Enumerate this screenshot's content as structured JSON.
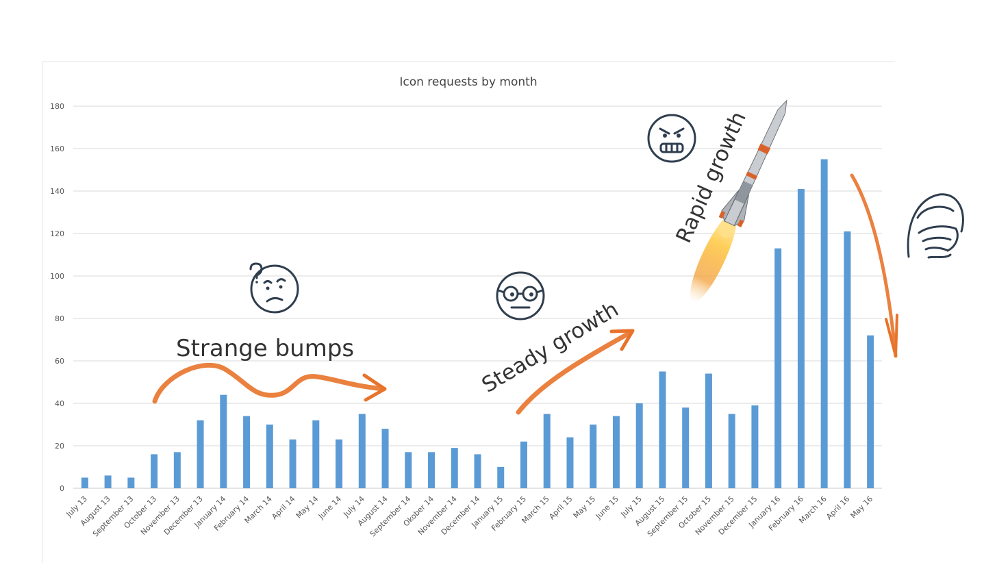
{
  "chart_data": {
    "type": "bar",
    "title": "Icon requests by month",
    "xlabel": "",
    "ylabel": "",
    "ylim": [
      0,
      180
    ],
    "yticks": [
      0,
      20,
      40,
      60,
      80,
      100,
      120,
      140,
      160,
      180
    ],
    "grid": true,
    "legend": "none",
    "bar_color": "#5b9bd5",
    "categories": [
      "July 13",
      "August 13",
      "September 13",
      "October 13",
      "November 13",
      "December 13",
      "January 14",
      "February 14",
      "March 14",
      "April 14",
      "May 14",
      "June 14",
      "July 14",
      "August 14",
      "September 14",
      "Okober 14",
      "November 14",
      "December 14",
      "January 15",
      "February 15",
      "March 15",
      "April 15",
      "May 15",
      "June 15",
      "July 15",
      "August 15",
      "September 15",
      "October 15",
      "November 15",
      "December 15",
      "January 16",
      "February 16",
      "March 16",
      "April 16",
      "May 16"
    ],
    "values": [
      5,
      6,
      5,
      16,
      17,
      32,
      44,
      34,
      30,
      23,
      32,
      23,
      35,
      28,
      17,
      17,
      19,
      16,
      10,
      22,
      35,
      24,
      30,
      34,
      40,
      55,
      38,
      54,
      35,
      39,
      113,
      141,
      155,
      121,
      72
    ]
  },
  "annotations": {
    "strange_bumps": "Strange bumps",
    "steady_growth": "Steady growth",
    "rapid_growth": "Rapid growth"
  },
  "icons": {
    "confused": "confused-face-icon",
    "nerd": "nerd-face-icon",
    "grin": "grinning-face-icon",
    "facepalm": "facepalm-icon",
    "rocket": "rocket-icon"
  },
  "colors": {
    "accent": "#e8732a",
    "bar": "#5b9bd5",
    "grid": "#d9d9d9",
    "face": "#2f3e4e"
  }
}
